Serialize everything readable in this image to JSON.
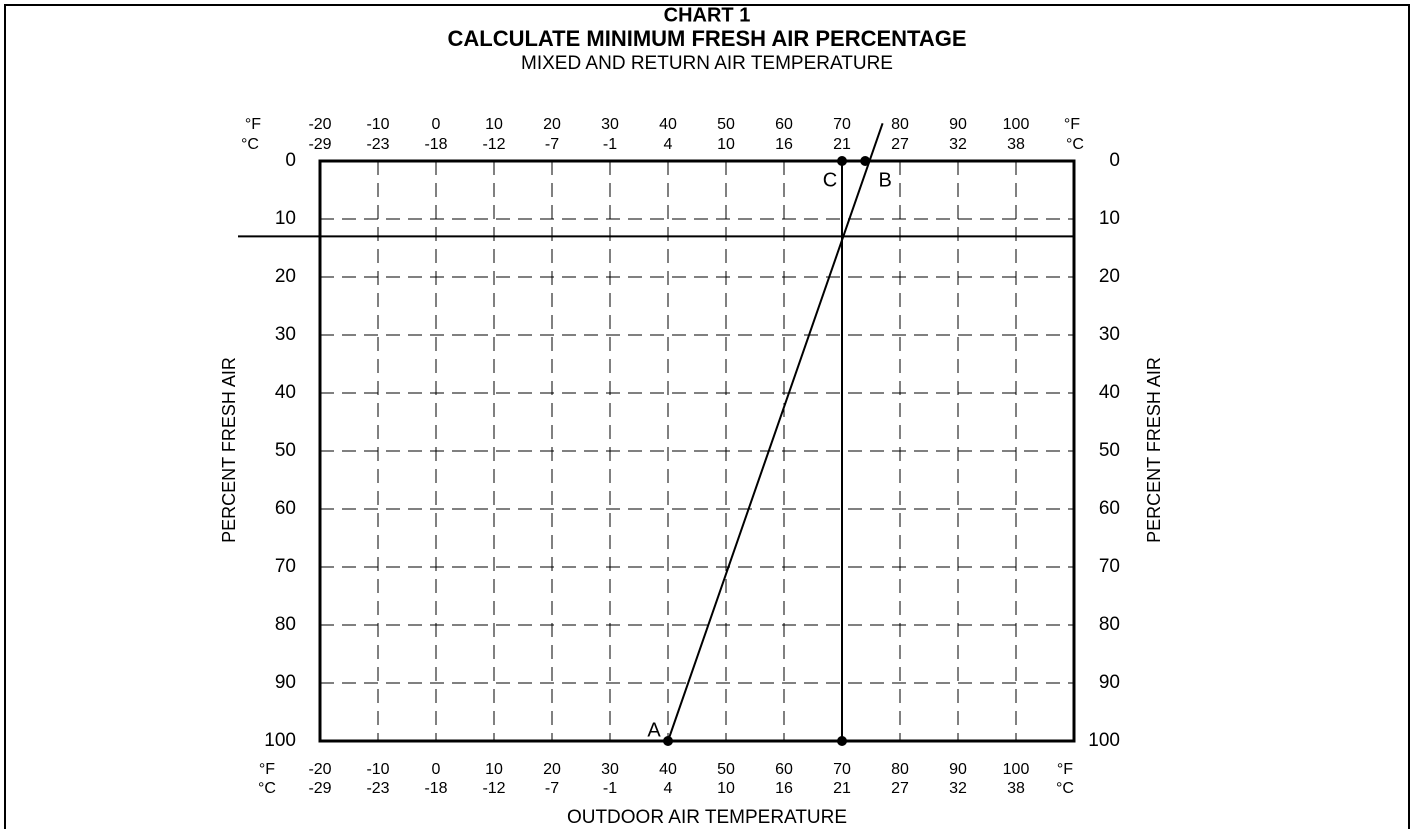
{
  "chart_data": {
    "type": "line",
    "title": "CHART 1",
    "subtitle": "CALCULATE MINIMUM FRESH AIR PERCENTAGE",
    "top_axis_label": "MIXED AND RETURN AIR TEMPERATURE",
    "x_label": "OUTDOOR AIR TEMPERATURE",
    "y_label": "PERCENT FRESH AIR",
    "unit_f": "°F",
    "unit_c": "°C",
    "xlim": [
      -20,
      110
    ],
    "xticks": [
      -20,
      -10,
      0,
      10,
      20,
      30,
      40,
      50,
      60,
      70,
      80,
      90,
      100
    ],
    "celsius_labels": [
      -29,
      -23,
      -18,
      -12,
      -7,
      -1,
      4,
      10,
      16,
      21,
      27,
      32,
      38
    ],
    "ylim": [
      0,
      100
    ],
    "yticks": [
      0,
      10,
      20,
      30,
      40,
      50,
      60,
      70,
      80,
      90,
      100
    ],
    "y_reversed": true,
    "grid": true,
    "color": "#000000",
    "lines": [
      {
        "x": [
          40,
          77
        ],
        "values": [
          100,
          -6.5
        ]
      },
      {
        "x": [
          70,
          70
        ],
        "values": [
          0,
          100
        ]
      }
    ],
    "reference_y": 13,
    "points": [
      {
        "x": 40,
        "y": 100,
        "label": "A"
      },
      {
        "x": 74,
        "y": 0,
        "label": "B"
      },
      {
        "x": 70,
        "y": 0,
        "label": "C"
      },
      {
        "x": 70,
        "y": 100
      }
    ]
  }
}
